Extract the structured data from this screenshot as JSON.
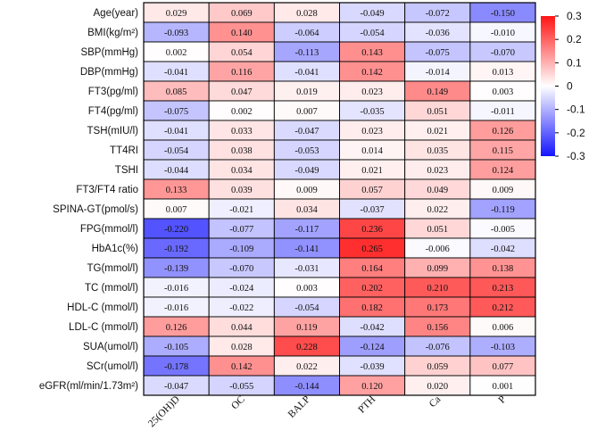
{
  "chart_data": {
    "type": "heatmap",
    "title": "",
    "columns": [
      "25(OH)D",
      "OC",
      "BALP",
      "PTH",
      "Ca",
      "P"
    ],
    "rows": [
      "Age(year)",
      "BMI(kg/m²)",
      "SBP(mmHg)",
      "DBP(mmHg)",
      "FT3(pg/ml)",
      "FT4(pg/ml)",
      "TSH(mIU/l)",
      "TT4RI",
      "TSHI",
      "FT3/FT4 ratio",
      "SPINA-GT(pmol/s)",
      "FPG(mmol/l)",
      "HbA1c(%)",
      "TG(mmol/l)",
      "TC (mmol/l)",
      "HDL-C (mmol/l)",
      "LDL-C (mmol/l)",
      "SUA(umol/l)",
      "SCr(umol/l)",
      "eGFR(ml/min/1.73m²)"
    ],
    "values": [
      [
        0.029,
        0.069,
        0.028,
        -0.049,
        -0.072,
        -0.15
      ],
      [
        -0.093,
        0.14,
        -0.064,
        -0.054,
        -0.036,
        -0.01
      ],
      [
        0.002,
        0.054,
        -0.113,
        0.143,
        -0.075,
        -0.07
      ],
      [
        -0.041,
        0.116,
        -0.041,
        0.142,
        -0.014,
        0.013
      ],
      [
        0.085,
        0.047,
        0.019,
        0.023,
        0.149,
        0.003
      ],
      [
        -0.075,
        0.002,
        0.007,
        -0.035,
        0.051,
        -0.011
      ],
      [
        -0.041,
        0.033,
        -0.047,
        0.023,
        0.021,
        0.126
      ],
      [
        -0.054,
        0.038,
        -0.053,
        0.014,
        0.035,
        0.115
      ],
      [
        -0.044,
        0.034,
        -0.049,
        0.021,
        0.023,
        0.124
      ],
      [
        0.133,
        0.039,
        0.009,
        0.057,
        0.049,
        0.009
      ],
      [
        0.007,
        -0.021,
        0.034,
        -0.037,
        0.022,
        -0.119
      ],
      [
        -0.22,
        -0.077,
        -0.117,
        0.236,
        0.051,
        -0.005
      ],
      [
        -0.192,
        -0.109,
        -0.141,
        0.265,
        -0.006,
        -0.042
      ],
      [
        -0.139,
        -0.07,
        -0.031,
        0.164,
        0.099,
        0.138
      ],
      [
        -0.016,
        -0.024,
        0.003,
        0.202,
        0.21,
        0.213
      ],
      [
        -0.016,
        -0.022,
        -0.054,
        0.182,
        0.173,
        0.212
      ],
      [
        0.126,
        0.044,
        0.119,
        -0.042,
        0.156,
        0.006
      ],
      [
        -0.105,
        0.028,
        0.228,
        -0.124,
        -0.076,
        -0.103
      ],
      [
        -0.178,
        0.142,
        0.022,
        -0.039,
        0.059,
        0.077
      ],
      [
        -0.047,
        -0.055,
        -0.144,
        0.12,
        0.02,
        0.001
      ]
    ],
    "color_scale": {
      "min": -0.3,
      "max": 0.3,
      "low_color": "#1414ff",
      "mid_color": "#ffffff",
      "high_color": "#ff1414",
      "ticks": [
        0.3,
        0.2,
        0.1,
        0,
        -0.1,
        -0.2,
        -0.3
      ],
      "tick_labels": [
        "0.3",
        "0.2",
        "0.1",
        "0",
        "-0.1",
        "-0.2",
        "-0.3"
      ]
    },
    "legend_position": "right"
  }
}
